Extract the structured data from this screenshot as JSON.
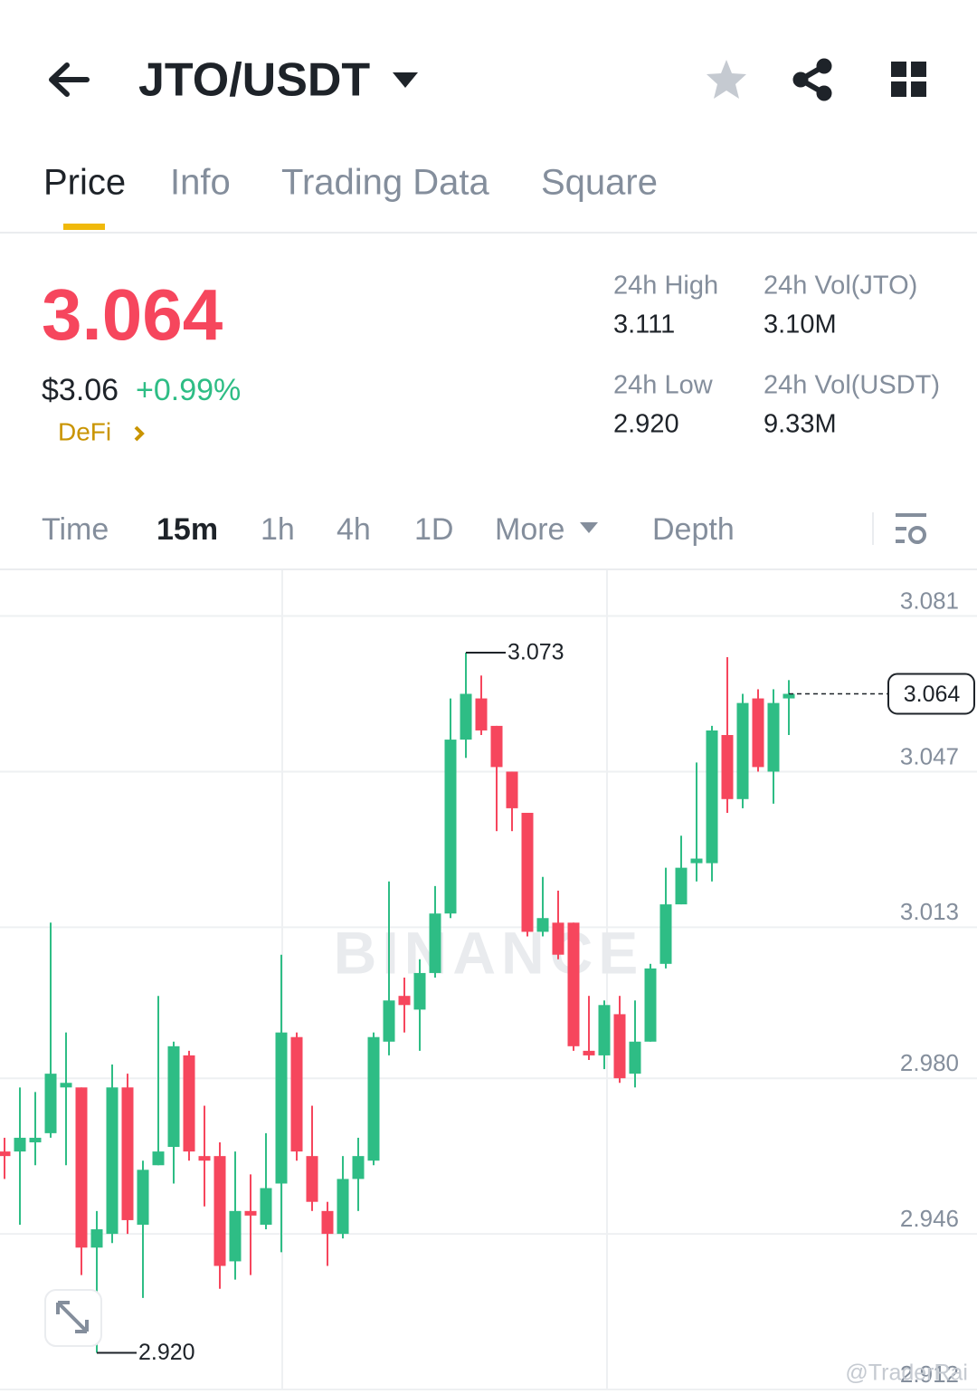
{
  "header": {
    "pair": "JTO/USDT"
  },
  "tabs": {
    "items": [
      "Price",
      "Info",
      "Trading Data",
      "Square"
    ],
    "active": 0
  },
  "price": {
    "last": "3.064",
    "usd": "$3.06",
    "change": "+0.99%",
    "tag": "DeFi"
  },
  "stats": [
    {
      "label": "24h High",
      "value": "3.111"
    },
    {
      "label": "24h Vol(JTO)",
      "value": "3.10M"
    },
    {
      "label": "24h Low",
      "value": "2.920"
    },
    {
      "label": "24h Vol(USDT)",
      "value": "9.33M"
    }
  ],
  "intervals": {
    "items": [
      "Time",
      "15m",
      "1h",
      "4h",
      "1D",
      "More",
      "Depth"
    ],
    "active": 1
  },
  "chart_data": {
    "type": "candlestick",
    "up_color": "#2ebd85",
    "down_color": "#f6465d",
    "ylim": [
      2.912,
      3.091
    ],
    "yticks": [
      3.081,
      3.047,
      3.013,
      {
        "value": 2.98,
        "label": "2.980"
      },
      2.946,
      2.912
    ],
    "grid": true,
    "max_label": 3.073,
    "min_label": {
      "value": 2.92,
      "label": "2.920"
    },
    "last_price": 3.064,
    "watermarks": [
      "BINANCE",
      "@TraderRai"
    ],
    "open": [
      2.964,
      2.964,
      2.966,
      2.968,
      2.978,
      2.978,
      2.943,
      2.946,
      2.978,
      2.948,
      2.961,
      2.965,
      2.985,
      2.963,
      2.963,
      2.94,
      2.951,
      2.948,
      2.957,
      2.989,
      2.963,
      2.951,
      2.946,
      2.958,
      2.962,
      2.988,
      2.998,
      2.995,
      3.003,
      3.016,
      3.054,
      3.063,
      3.057,
      3.047,
      3.038,
      3.012,
      3.014,
      3.014,
      2.986,
      2.985,
      2.994,
      2.981,
      2.988,
      3.005,
      3.018,
      3.027,
      3.027,
      3.055,
      3.041,
      3.063,
      3.047,
      3.063
    ],
    "high": [
      2.967,
      2.978,
      2.977,
      3.014,
      2.99,
      2.978,
      2.951,
      2.983,
      2.981,
      2.962,
      2.998,
      2.988,
      2.986,
      2.974,
      2.966,
      2.964,
      2.959,
      2.968,
      3.007,
      2.99,
      2.974,
      2.953,
      2.963,
      2.967,
      2.99,
      3.023,
      3.002,
      3.006,
      3.022,
      3.063,
      3.073,
      3.068,
      3.057,
      3.047,
      3.038,
      3.024,
      3.021,
      3.014,
      2.998,
      2.997,
      2.998,
      2.997,
      3.005,
      3.026,
      3.033,
      3.049,
      3.057,
      3.072,
      3.064,
      3.065,
      3.065,
      3.067
    ],
    "low": [
      2.958,
      2.948,
      2.961,
      2.967,
      2.961,
      2.937,
      2.92,
      2.944,
      2.946,
      2.932,
      2.961,
      2.957,
      2.962,
      2.952,
      2.934,
      2.936,
      2.937,
      2.947,
      2.942,
      2.962,
      2.951,
      2.939,
      2.945,
      2.951,
      2.961,
      2.985,
      2.99,
      2.986,
      3.002,
      3.015,
      3.05,
      3.055,
      3.034,
      3.034,
      3.011,
      3.011,
      3.006,
      2.986,
      2.984,
      2.982,
      2.979,
      2.978,
      2.988,
      3.004,
      3.018,
      3.023,
      3.023,
      3.038,
      3.039,
      3.047,
      3.04,
      3.055
    ],
    "close": [
      2.963,
      2.967,
      2.967,
      2.981,
      2.979,
      2.943,
      2.947,
      2.978,
      2.949,
      2.96,
      2.964,
      2.987,
      2.964,
      2.962,
      2.939,
      2.951,
      2.95,
      2.956,
      2.99,
      2.964,
      2.953,
      2.946,
      2.958,
      2.963,
      2.989,
      2.997,
      2.996,
      3.003,
      3.016,
      3.054,
      3.064,
      3.056,
      3.048,
      3.039,
      3.012,
      3.015,
      3.007,
      2.987,
      2.985,
      2.996,
      2.98,
      2.988,
      3.004,
      3.018,
      3.026,
      3.028,
      3.056,
      3.041,
      3.062,
      3.048,
      3.062,
      3.064
    ]
  }
}
